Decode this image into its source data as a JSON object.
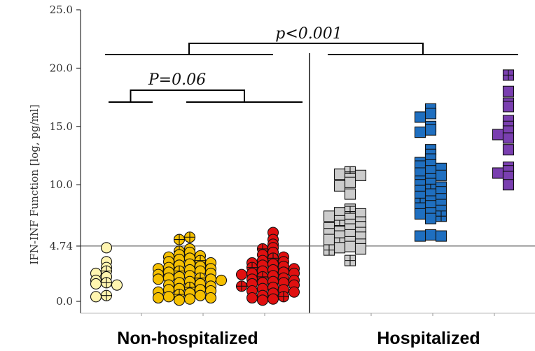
{
  "chart_data": {
    "type": "scatter",
    "title": "",
    "ylabel": "IFN-INF Function [log, pg/ml]",
    "ylim": [
      0,
      25
    ],
    "y_ticks": [
      {
        "value": 0,
        "label": "0.0"
      },
      {
        "value": 4.74,
        "label": "4.74"
      },
      {
        "value": 10,
        "label": "10.0"
      },
      {
        "value": 15,
        "label": "15.0"
      },
      {
        "value": 20,
        "label": "20.0"
      },
      {
        "value": 25,
        "label": "25.0"
      }
    ],
    "threshold": 4.74,
    "groups": [
      {
        "label": "Non-hospitalized",
        "series": [
          0,
          1,
          2
        ]
      },
      {
        "label": "Hospitalized",
        "series": [
          3,
          4,
          5
        ]
      }
    ],
    "significance": [
      {
        "label": "P=0.06"
      },
      {
        "label": "p<0.001"
      }
    ],
    "series": [
      {
        "marker": "circle",
        "color": "#fff5b0",
        "values": [
          4.6,
          3.4,
          2.9,
          2.6,
          2.4,
          2.1,
          1.8,
          1.6,
          1.5,
          1.4,
          0.5,
          0.4
        ],
        "crossed": [
          2.6,
          1.6,
          0.5
        ]
      },
      {
        "marker": "circle",
        "color": "#f6c000",
        "values": [
          5.5,
          5.3,
          4.5,
          4.3,
          4.2,
          4.0,
          3.9,
          3.8,
          3.7,
          3.5,
          3.4,
          3.3,
          3.2,
          3.1,
          3.0,
          2.9,
          2.8,
          2.7,
          2.6,
          2.6,
          2.5,
          2.4,
          2.3,
          2.2,
          2.1,
          2.0,
          2.0,
          1.9,
          1.8,
          1.7,
          1.6,
          1.5,
          1.4,
          1.3,
          1.2,
          1.1,
          1.0,
          0.9,
          0.8,
          0.7,
          0.6,
          0.5,
          0.4,
          0.3,
          0.2,
          0.1,
          3.6,
          2.8,
          1.9,
          1.0,
          0.3
        ],
        "crossed": [
          5.5,
          5.3,
          4.3,
          3.5,
          2.6,
          2.0,
          1.2,
          0.6
        ]
      },
      {
        "marker": "circle",
        "color": "#e01010",
        "values": [
          5.9,
          5.3,
          4.9,
          4.6,
          4.5,
          4.2,
          4.0,
          3.8,
          3.7,
          3.5,
          3.4,
          3.3,
          3.2,
          3.0,
          2.9,
          2.8,
          2.7,
          2.6,
          2.5,
          2.4,
          2.3,
          2.2,
          2.1,
          2.0,
          1.9,
          1.8,
          1.7,
          1.6,
          1.5,
          1.4,
          1.3,
          1.2,
          1.1,
          1.0,
          0.8,
          0.7,
          0.5,
          0.4,
          0.3,
          0.2,
          0.1,
          3.1,
          2.4,
          1.6,
          0.9
        ],
        "crossed": [
          4.5,
          3.7,
          2.9,
          2.1,
          1.3,
          0.4
        ]
      },
      {
        "marker": "square",
        "color": "#cccccc",
        "values": [
          11.1,
          10.9,
          10.8,
          10.5,
          10.2,
          9.9,
          9.2,
          7.9,
          7.7,
          7.5,
          7.3,
          7.1,
          6.9,
          6.8,
          6.6,
          6.5,
          6.3,
          6.2,
          6.0,
          5.9,
          5.7,
          5.6,
          5.5,
          5.3,
          5.1,
          5.0,
          4.9,
          4.7,
          4.5,
          4.4,
          3.5,
          7.6,
          6.4,
          5.8,
          4.6
        ],
        "crossed": [
          11.1,
          7.7,
          6.5,
          5.0,
          4.4,
          3.5
        ]
      },
      {
        "marker": "square",
        "color": "#1f6fc0",
        "values": [
          16.5,
          16.1,
          15.8,
          15.0,
          14.7,
          14.5,
          13.0,
          12.6,
          12.2,
          11.9,
          11.7,
          11.4,
          11.2,
          11.0,
          10.8,
          10.5,
          10.3,
          10.0,
          9.8,
          9.6,
          9.4,
          9.2,
          9.0,
          8.8,
          8.6,
          8.4,
          8.2,
          8.0,
          7.8,
          7.5,
          7.3,
          7.1,
          5.7,
          5.6,
          11.6,
          10.1,
          9.5,
          8.3,
          7.6,
          5.6
        ],
        "crossed": [
          9.6,
          8.4,
          7.3
        ]
      },
      {
        "marker": "square",
        "color": "#7a3fb0",
        "values": [
          19.4,
          18.0,
          17.0,
          16.7,
          15.5,
          15.0,
          14.6,
          14.3,
          14.0,
          13.0,
          11.5,
          11.2,
          11.0,
          10.7,
          10.0
        ],
        "crossed": [
          19.4
        ]
      }
    ]
  }
}
